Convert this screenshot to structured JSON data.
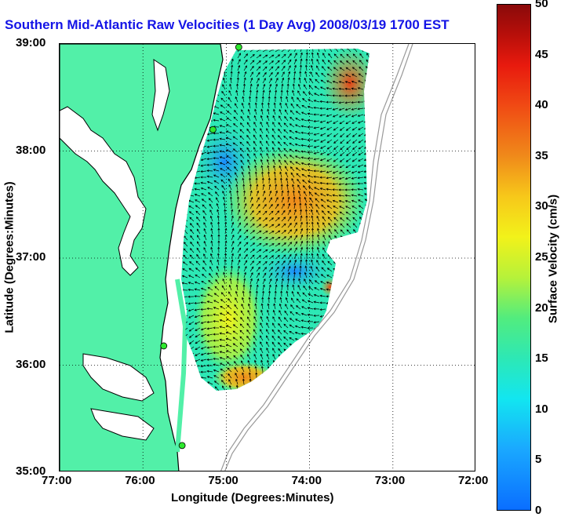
{
  "title": "Southern Mid-Atlantic Raw Velocities (1 Day Avg) 2008/03/19 1700 EST",
  "xlabel": "Longitude (Degrees:Minutes)",
  "ylabel": "Latitude (Degrees:Minutes)",
  "colorbar_label": "Surface Velocity (cm/s)",
  "x_ticks": [
    "77:00",
    "76:00",
    "75:00",
    "74:00",
    "73:00",
    "72:00"
  ],
  "y_ticks": [
    "39:00",
    "38:00",
    "37:00",
    "36:00",
    "35:00"
  ],
  "colorbar_ticks": [
    "50",
    "45",
    "40",
    "35",
    "30",
    "25",
    "20",
    "15",
    "10",
    "5",
    "0"
  ],
  "colors": {
    "land": "#52f0a8",
    "coast": "#000000",
    "title": "#1414e6",
    "station": "#2ee82e"
  },
  "map_data": {
    "lon_range": [
      -77,
      -72
    ],
    "lat_range": [
      35,
      39
    ],
    "colorbar_range": [
      0,
      50
    ],
    "grid": true,
    "stations": [
      {
        "lon": -74.85,
        "lat": 38.97
      },
      {
        "lon": -75.16,
        "lat": 38.2
      },
      {
        "lon": -75.75,
        "lat": 36.18
      },
      {
        "lon": -75.53,
        "lat": 35.25
      }
    ]
  }
}
